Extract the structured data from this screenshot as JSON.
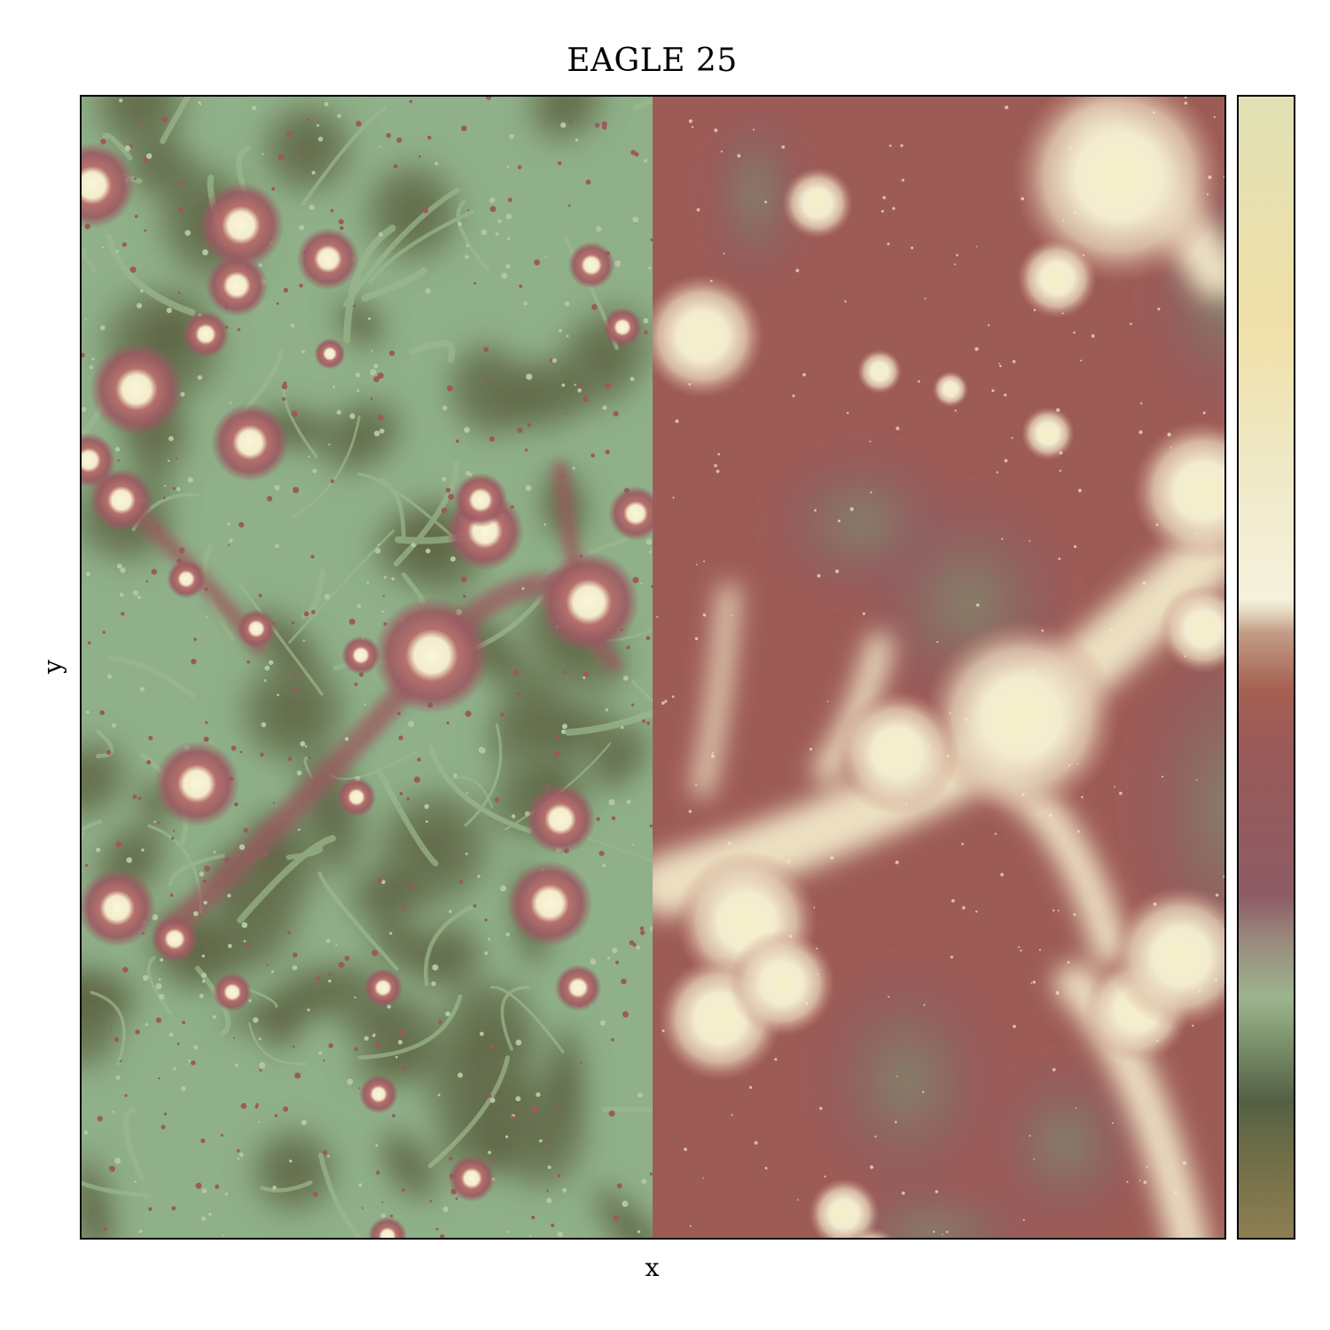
{
  "figure": {
    "title": "EAGLE 25",
    "xlabel": "x",
    "ylabel": "y"
  },
  "panels": {
    "left": {
      "base_color": "#8fb089",
      "void_color": "#5e6444",
      "halo_color": "#9a5a5e",
      "core_color": "#f6f0cf"
    },
    "right": {
      "base_color": "#9d5b56",
      "void_color": "#8a5a66",
      "bright_color": "#f4efcc"
    }
  },
  "colormap": {
    "stops": [
      {
        "offset": 0.0,
        "color": "#8e7e52"
      },
      {
        "offset": 0.08,
        "color": "#6c6c46"
      },
      {
        "offset": 0.12,
        "color": "#536044"
      },
      {
        "offset": 0.17,
        "color": "#7a906a"
      },
      {
        "offset": 0.21,
        "color": "#9cb58f"
      },
      {
        "offset": 0.26,
        "color": "#9a8a7c"
      },
      {
        "offset": 0.3,
        "color": "#8e5c66"
      },
      {
        "offset": 0.43,
        "color": "#9a5a58"
      },
      {
        "offset": 0.48,
        "color": "#a56050"
      },
      {
        "offset": 0.53,
        "color": "#c29c86"
      },
      {
        "offset": 0.55,
        "color": "#e8dcc4"
      },
      {
        "offset": 0.56,
        "color": "#f6f1dc"
      },
      {
        "offset": 0.68,
        "color": "#efe9c6"
      },
      {
        "offset": 0.8,
        "color": "#f0e0a8"
      },
      {
        "offset": 1.0,
        "color": "#e0e0b4"
      }
    ]
  }
}
